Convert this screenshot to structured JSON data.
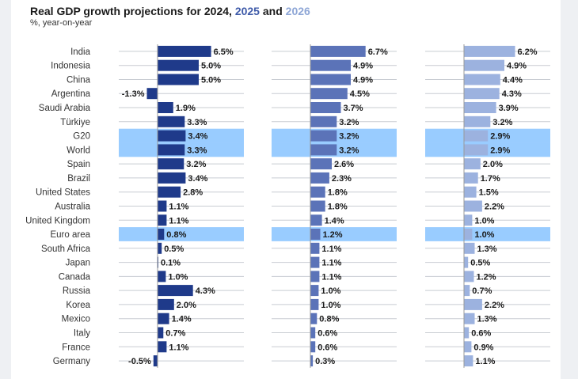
{
  "title": {
    "prefix": "Real GDP growth projections for ",
    "year1": "2024",
    "sep1": ", ",
    "year2": "2025",
    "sep2": " and ",
    "year3": "2026"
  },
  "subtitle": "%, year-on-year",
  "chart_data": {
    "type": "bar",
    "orientation": "horizontal",
    "categories": [
      "India",
      "Indonesia",
      "China",
      "Argentina",
      "Saudi Arabia",
      "Türkiye",
      "G20",
      "World",
      "Spain",
      "Brazil",
      "United States",
      "Australia",
      "United Kingdom",
      "Euro area",
      "South Africa",
      "Japan",
      "Canada",
      "Russia",
      "Korea",
      "Mexico",
      "Italy",
      "France",
      "Germany"
    ],
    "highlighted": [
      "G20",
      "World",
      "Euro area"
    ],
    "series": [
      {
        "name": "2024",
        "color": "#1f3a8a",
        "values": [
          6.5,
          5.0,
          5.0,
          -1.3,
          1.9,
          3.3,
          3.4,
          3.3,
          3.2,
          3.4,
          2.8,
          1.1,
          1.1,
          0.8,
          0.5,
          0.1,
          1.0,
          4.3,
          2.0,
          1.4,
          0.7,
          1.1,
          -0.5
        ]
      },
      {
        "name": "2025",
        "color": "#5b73b8",
        "values": [
          6.7,
          4.9,
          4.9,
          4.5,
          3.7,
          3.2,
          3.2,
          3.2,
          2.6,
          2.3,
          1.8,
          1.8,
          1.4,
          1.2,
          1.1,
          1.1,
          1.1,
          1.0,
          1.0,
          0.8,
          0.6,
          0.6,
          0.3
        ]
      },
      {
        "name": "2026",
        "color": "#9cb2df",
        "values": [
          6.2,
          4.9,
          4.4,
          4.3,
          3.9,
          3.2,
          2.9,
          2.9,
          2.0,
          1.7,
          1.5,
          2.2,
          1.0,
          1.0,
          1.3,
          0.5,
          1.2,
          0.7,
          2.2,
          1.3,
          0.6,
          0.9,
          1.1
        ]
      }
    ],
    "unit": "%",
    "grid": true,
    "colors": {
      "highlight": "#99ccff",
      "grid": "#c8ccd2",
      "axis": "#999999"
    }
  }
}
